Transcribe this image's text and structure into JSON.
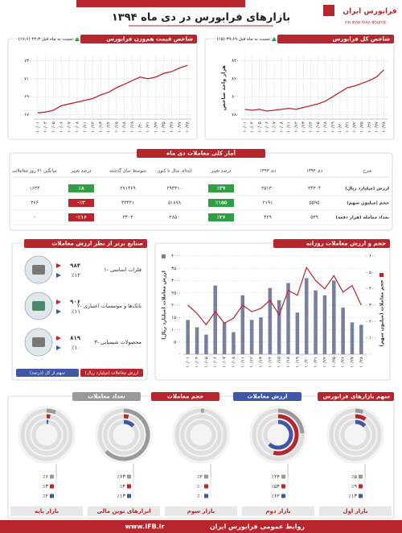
{
  "header": {
    "title": "بازارهای فرابورس در دی ماه ۱۳۹۴",
    "logo": "فرابورس ایران",
    "logo_latin": "IFB IRAN FARA BOURSE"
  },
  "footer": {
    "text": "روابط عمومی فرابورس ایران",
    "url": "www.IFB.ir"
  },
  "chart_data": [
    {
      "type": "line",
      "title": "شاخص کل فرابورس",
      "ylabel": "هزار واحد شاخص",
      "annotation": "نسبت به ماه قبل ۳۹،۶۹ (۵٪)",
      "color": "#b7252d",
      "categories": [
        "۱۰/۰۱",
        "۱۰/۰۴",
        "۱۰/۰۵",
        "۱۰/۰۶",
        "۱۰/۰۷",
        "۱۰/۰۸",
        "۱۰/۱۱",
        "۱۰/۱۲",
        "۱۰/۱۳",
        "۱۰/۱۴",
        "۱۰/۱۵",
        "۱۰/۱۸",
        "۱۰/۱۹",
        "۱۰/۲۰",
        "۱۰/۲۱",
        "۱۰/۲۲",
        "۱۰/۲۵",
        "۱۰/۲۶",
        "۱۰/۲۷",
        "۱۰/۲۸"
      ],
      "values": [
        786,
        785,
        786,
        784,
        785,
        786,
        787,
        786,
        788,
        790,
        792,
        795,
        800,
        805,
        810,
        812,
        815,
        818,
        822,
        830
      ],
      "ylim": [
        775,
        845
      ],
      "yticks": [
        {
          "value": 780,
          "label": "۷۸۰"
        },
        {
          "value": 800,
          "label": "۸۰۰"
        },
        {
          "value": 820,
          "label": "۸۲۰"
        },
        {
          "value": 840,
          "label": "۸۴۰"
        }
      ]
    },
    {
      "type": "line",
      "title": "شاخص قیمت هم‌وزن فرابورس",
      "annotation": "نسبت به ماه قبل ۴۴،۳ (۶،۶٪)",
      "color": "#b7252d",
      "categories": [
        "۱۰/۰۱",
        "۱۰/۰۴",
        "۱۰/۰۵",
        "۱۰/۰۶",
        "۱۰/۰۷",
        "۱۰/۰۸",
        "۱۰/۱۱",
        "۱۰/۱۲",
        "۱۰/۱۳",
        "۱۰/۱۴",
        "۱۰/۱۵",
        "۱۰/۱۸",
        "۱۰/۱۹",
        "۱۰/۲۰",
        "۱۰/۲۱",
        "۱۰/۲۲",
        "۱۰/۲۵",
        "۱۰/۲۶",
        "۱۰/۲۷",
        "۱۰/۲۸"
      ],
      "values": [
        672,
        673,
        675,
        680,
        682,
        684,
        686,
        688,
        692,
        695,
        700,
        704,
        708,
        712,
        710,
        712,
        716,
        718,
        722,
        725
      ],
      "ylim": [
        665,
        735
      ],
      "yticks": [
        {
          "value": 670,
          "label": "۶۷۰"
        },
        {
          "value": 690,
          "label": "۶۹۰"
        },
        {
          "value": 710,
          "label": "۷۱۰"
        },
        {
          "value": 730,
          "label": "۷۳۰"
        }
      ]
    },
    {
      "type": "combo",
      "title": "حجم و ارزش معاملات روزانه",
      "categories": [
        "۱۰/۰۱",
        "۱۰/۰۴",
        "۱۰/۰۵",
        "۱۰/۰۶",
        "۱۰/۰۷",
        "۱۰/۰۸",
        "۱۰/۱۱",
        "۱۰/۱۲",
        "۱۰/۱۳",
        "۱۰/۱۴",
        "۱۰/۱۵",
        "۱۰/۱۸",
        "۱۰/۱۹",
        "۱۰/۲۰",
        "۱۰/۲۱",
        "۱۰/۲۲",
        "۱۰/۲۵",
        "۱۰/۲۶",
        "۱۰/۲۷",
        "۱۰/۲۸"
      ],
      "series": [
        {
          "name": "ارزش معاملات (میلیارد ریال)",
          "color": "#7a7f9e",
          "values": [
            1400,
            1100,
            800,
            2800,
            1300,
            900,
            2400,
            1400,
            1500,
            2700,
            2200,
            2900,
            1700,
            3100,
            2600,
            2400,
            3000,
            1900,
            1300,
            1200
          ]
        },
        {
          "name": "حجم معاملات (میلیون سهم)",
          "color": "#b7252d",
          "axis": "y2",
          "values": [
            300,
            250,
            180,
            260,
            190,
            220,
            300,
            260,
            280,
            330,
            240,
            390,
            360,
            530,
            450,
            400,
            480,
            380,
            420,
            300
          ]
        }
      ],
      "ylim": [
        0,
        4000
      ],
      "yticks": [
        {
          "value": 0,
          "label": "۰"
        },
        {
          "value": 500,
          "label": "۵۰۰"
        },
        {
          "value": 1000,
          "label": "۱۰۰۰"
        },
        {
          "value": 1500,
          "label": "۱۵۰۰"
        },
        {
          "value": 2000,
          "label": "۲۰۰۰"
        },
        {
          "value": 2500,
          "label": "۲۵۰۰"
        },
        {
          "value": 3000,
          "label": "۳۰۰۰"
        },
        {
          "value": 3500,
          "label": "۳۵۰۰"
        },
        {
          "value": 4000,
          "label": "۴۰۰۰"
        }
      ],
      "y2lim": [
        0,
        600
      ],
      "y2ticks": [
        {
          "value": 0,
          "label": "۰"
        },
        {
          "value": 100,
          "label": "۱۰۰"
        },
        {
          "value": 200,
          "label": "۲۰۰"
        },
        {
          "value": 300,
          "label": "۳۰۰"
        },
        {
          "value": 400,
          "label": "۴۰۰"
        },
        {
          "value": 500,
          "label": "۵۰۰"
        },
        {
          "value": 600,
          "label": "۶۰۰"
        }
      ]
    },
    {
      "type": "donut",
      "title": "سهم بازارهای فرابورس",
      "categories": [
        "بازار اول",
        "بازار دوم",
        "بازار سوم",
        "ابزارهای نوین مالی",
        "بازار پایه"
      ],
      "series": [
        {
          "name": "تعداد معاملات",
          "color": "#9a9a9a",
          "values": [
            5,
            24,
            2,
            63,
            6
          ],
          "value_labels": [
            "٪۵",
            "٪۲۴",
            "٪۲",
            "٪۶۳",
            "٪۶"
          ]
        },
        {
          "name": "حجم معاملات",
          "color": "#b7252d",
          "values": [
            9,
            54,
            0,
            4,
            3
          ],
          "value_labels": [
            "٪۹",
            "٪۵۴",
            "٪۰",
            "٪۴",
            "٪۳"
          ]
        },
        {
          "name": "ارزش معاملات",
          "color": "#3f57a6",
          "values": [
            13,
            62,
            0,
            13,
            2
          ],
          "value_labels": [
            "٪۱۳",
            "٪۶۲",
            "٪۰",
            "٪۱۳",
            "٪۲"
          ]
        }
      ]
    }
  ],
  "table": {
    "title": "آمار کلی معاملات دی ماه",
    "headers": [
      "شرح",
      "دی ۱۳۹۴",
      "دی ۱۳۹۳",
      "درصد تغییر",
      "ابتدای سال تا کنون",
      "متوسط سال گذشته",
      "درصد تغییر",
      "میانگین ۲۱ روز معاملاتی"
    ],
    "rows": [
      [
        "ارزش (میلیارد ریال)",
        "۳۴۳۰۴",
        "۲۵۱۳۰",
        "٪۳۷",
        "۲۹۳۳۱۰",
        "۲۷۱۴۶۹",
        "٪۸",
        "۱۶۳۴"
      ],
      [
        "حجم (میلیون سهم)",
        "۵۵۹۵",
        "۲۱۹۱",
        "٪۱۵۵",
        "۵۱۸۷۸",
        "۴۳۴۳۱",
        "-٪۳",
        "۲۶۶"
      ],
      [
        "تعداد معامله (هزار دفعه)",
        "۵۳۹",
        "۴۲۹",
        "٪۲۶",
        "۲۸۵۰",
        "۳۴۰۳",
        "-٪۱۶",
        "-"
      ]
    ]
  },
  "industries": {
    "title": "صنایع برتر از نظر ارزش معاملات",
    "items": [
      {
        "name": "۱- فلزات اساسی",
        "value": "۹۸۴",
        "share": "٪۱۲"
      },
      {
        "name": "۲- بانک‌ها و موسسات اعتباری",
        "value": "۹۰۶",
        "share": "٪۱۱"
      },
      {
        "name": "۳- محصولات شیمیایی",
        "value": "۸۱۹",
        "share": "٪۱۰"
      }
    ],
    "legend": [
      "سهم از کل (درصد)",
      "ارزش معاملات (میلیارد ریال)"
    ]
  }
}
